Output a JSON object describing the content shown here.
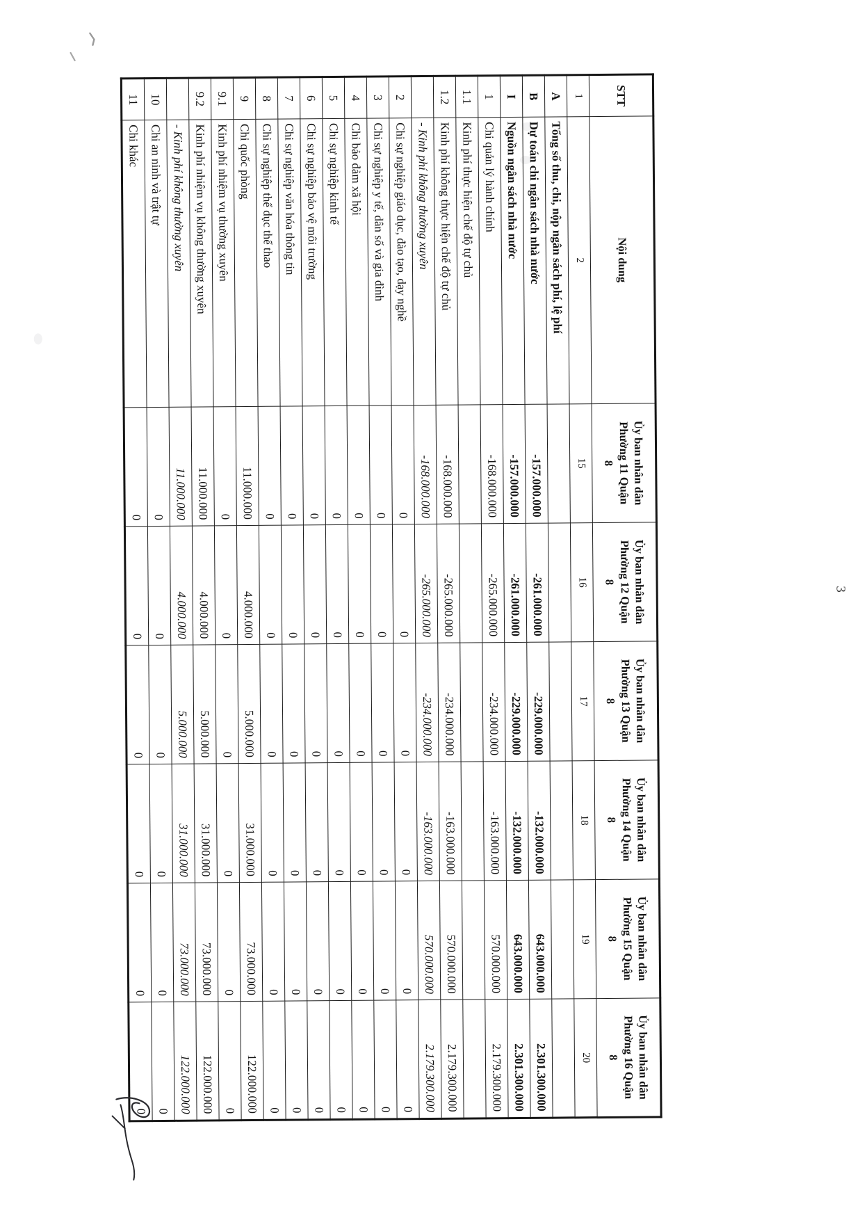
{
  "page": {
    "page_number": "3"
  },
  "colors": {
    "paper": "#ffffff",
    "grid_line": "#1c1c1c",
    "text": "#141414",
    "ink_handwriting": "#2a2a2e",
    "pencil_mark": "#9a9a9a"
  },
  "annotations": {
    "handwriting_note": "illegible handwritten initials / paraph",
    "pencil_marks_count": 2
  },
  "table": {
    "header": {
      "stt": "STT",
      "noi_dung": "Nội dung",
      "unit_columns": [
        "Ủy ban nhân dân Phường 11 Quận 8",
        "Ủy ban nhân dân Phường 12 Quận 8",
        "Ủy ban nhân dân Phường 13 Quận 8",
        "Ủy ban nhân dân Phường 14 Quận 8",
        "Ủy ban nhân dân Phường 15 Quận 8",
        "Ủy ban nhân dân Phường 16 Quận 8"
      ]
    },
    "column_numbers": [
      "1",
      "2",
      "15",
      "16",
      "17",
      "18",
      "19",
      "20"
    ],
    "rows": [
      {
        "stt": "A",
        "label": "Tổng số thu, chi, nộp ngân sách phí, lệ phí",
        "style": "bold",
        "values": [
          "",
          "",
          "",
          "",
          "",
          ""
        ]
      },
      {
        "stt": "B",
        "label": "Dự toán chi ngân sách nhà nước",
        "style": "bold",
        "values": [
          "-157.000.000",
          "-261.000.000",
          "-229.000.000",
          "-132.000.000",
          "643.000.000",
          "2.301.300.000"
        ]
      },
      {
        "stt": "I",
        "label": "Nguồn ngân sách nhà nước",
        "style": "bold",
        "values": [
          "-157.000.000",
          "-261.000.000",
          "-229.000.000",
          "-132.000.000",
          "643.000.000",
          "2.301.300.000"
        ]
      },
      {
        "stt": "1",
        "label": "Chi quản lý hành chính",
        "style": "normal",
        "values": [
          "-168.000.000",
          "-265.000.000",
          "-234.000.000",
          "-163.000.000",
          "570.000.000",
          "2.179.300.000"
        ]
      },
      {
        "stt": "1.1",
        "label": "Kinh phí thực hiện chế độ tự chủ",
        "style": "normal",
        "values": [
          "",
          "",
          "",
          "",
          "",
          ""
        ]
      },
      {
        "stt": "1.2",
        "label": "Kinh phí không thực hiện chế độ tự chủ",
        "style": "normal",
        "values": [
          "-168.000.000",
          "-265.000.000",
          "-234.000.000",
          "-163.000.000",
          "570.000.000",
          "2.179.300.000"
        ]
      },
      {
        "stt": "",
        "label": "- Kinh phí không thường xuyên",
        "style": "italic",
        "values": [
          "-168.000.000",
          "-265.000.000",
          "-234.000.000",
          "-163.000.000",
          "570.000.000",
          "2.179.300.000"
        ]
      },
      {
        "stt": "2",
        "label": "Chi sự nghiệp giáo dục, đào tạo, dạy nghề",
        "style": "normal",
        "values": [
          "0",
          "0",
          "0",
          "0",
          "0",
          "0"
        ]
      },
      {
        "stt": "3",
        "label": "Chi sự nghiệp y tế, dân số và gia đình",
        "style": "normal",
        "values": [
          "0",
          "0",
          "0",
          "0",
          "0",
          "0"
        ]
      },
      {
        "stt": "4",
        "label": "Chi bảo đảm xã hội",
        "style": "normal",
        "values": [
          "0",
          "0",
          "0",
          "0",
          "0",
          "0"
        ]
      },
      {
        "stt": "5",
        "label": "Chi sự nghiệp kinh tế",
        "style": "normal",
        "values": [
          "0",
          "0",
          "0",
          "0",
          "0",
          "0"
        ]
      },
      {
        "stt": "6",
        "label": "Chi sự nghiệp bảo vệ môi trường",
        "style": "normal",
        "values": [
          "0",
          "0",
          "0",
          "0",
          "0",
          "0"
        ]
      },
      {
        "stt": "7",
        "label": "Chi sự nghiệp văn hóa thông tin",
        "style": "normal",
        "values": [
          "0",
          "0",
          "0",
          "0",
          "0",
          "0"
        ]
      },
      {
        "stt": "8",
        "label": "Chi sự nghiệp thể dục thể thao",
        "style": "normal",
        "values": [
          "0",
          "0",
          "0",
          "0",
          "0",
          "0"
        ]
      },
      {
        "stt": "9",
        "label": "Chi quốc phòng",
        "style": "normal",
        "values": [
          "11.000.000",
          "4.000.000",
          "5.000.000",
          "31.000.000",
          "73.000.000",
          "122.000.000"
        ]
      },
      {
        "stt": "9.1",
        "label": "Kinh phí nhiệm vụ thường xuyên",
        "style": "normal",
        "values": [
          "0",
          "0",
          "0",
          "0",
          "0",
          "0"
        ]
      },
      {
        "stt": "9.2",
        "label": "Kinh phí nhiệm vụ không thường xuyên",
        "style": "normal",
        "values": [
          "11.000.000",
          "4.000.000",
          "5.000.000",
          "31.000.000",
          "73.000.000",
          "122.000.000"
        ]
      },
      {
        "stt": "",
        "label": "- Kinh phí không thường xuyên",
        "style": "italic",
        "values": [
          "11.000.000",
          "4.000.000",
          "5.000.000",
          "31.000.000",
          "73.000.000",
          "122.000.000"
        ]
      },
      {
        "stt": "10",
        "label": "Chi an ninh và trật tự",
        "style": "normal",
        "values": [
          "0",
          "0",
          "0",
          "0",
          "0",
          "0"
        ]
      },
      {
        "stt": "11",
        "label": "Chi khác",
        "style": "normal",
        "values": [
          "0",
          "0",
          "0",
          "0",
          "0",
          "0"
        ]
      }
    ]
  }
}
